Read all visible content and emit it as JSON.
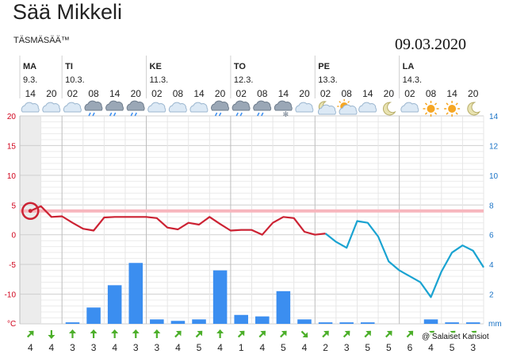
{
  "header": {
    "title": "Sää Mikkeli",
    "subtitle": "TÄSMÄSÄÄ™",
    "stamp_date": "09.03.2020",
    "credit": "@ Salaiset Kansiot"
  },
  "colors": {
    "temp_line": "#cc2233",
    "precip_line": "#1aa3d1",
    "precip_bar": "#3b8ef0",
    "left_axis": "#d0021b",
    "right_axis": "#1a73c6",
    "wind_arrow": "#4caf2a",
    "highlight_band": "#f7b6bd"
  },
  "chart_data": {
    "type": "line",
    "days": [
      {
        "name": "MA",
        "date": "9.3."
      },
      {
        "name": "TI",
        "date": "10.3."
      },
      {
        "name": "KE",
        "date": "11.3."
      },
      {
        "name": "TO",
        "date": "12.3."
      },
      {
        "name": "PE",
        "date": "13.3."
      },
      {
        "name": "LA",
        "date": "14.3."
      }
    ],
    "hours": [
      "14",
      "20",
      "02",
      "08",
      "14",
      "20",
      "02",
      "08",
      "14",
      "20",
      "02",
      "08",
      "14",
      "20",
      "02",
      "08",
      "14",
      "20",
      "02",
      "08",
      "14",
      "20"
    ],
    "day_start_index": [
      0,
      2,
      6,
      10,
      14,
      18
    ],
    "weather_icons": [
      "cloudy",
      "cloudy",
      "cloudy",
      "rain",
      "rain",
      "rain",
      "cloudy",
      "cloudy",
      "cloudy",
      "rain",
      "rain",
      "rain",
      "snow",
      "cloudy",
      "partly-cloudy-night",
      "partly-sunny",
      "cloudy",
      "moon",
      "cloudy",
      "sun",
      "sun",
      "moon"
    ],
    "left_axis": {
      "range": [
        -15,
        20
      ],
      "ticks": [
        "20",
        "15",
        "10",
        "5",
        "0",
        "-5",
        "-10"
      ],
      "unit": "°C"
    },
    "right_axis": {
      "range": [
        0,
        14
      ],
      "ticks": [
        "14",
        "12",
        "10",
        "8",
        "6",
        "4",
        "2"
      ],
      "unit": "mm"
    },
    "grid": true,
    "highlight_temperature": 4,
    "series": [
      {
        "x": [
          0,
          0.5,
          1,
          1.5,
          2,
          2.5,
          3,
          3.5,
          4,
          4.5,
          5,
          5.5,
          6,
          6.5,
          7,
          7.5,
          8,
          8.5,
          9,
          9.5,
          10,
          10.5,
          11,
          11.5,
          12,
          12.5,
          13,
          13.5,
          14,
          14.5,
          15,
          15.5,
          16,
          16.5,
          17,
          17.5,
          18,
          18.5,
          19,
          19.5,
          20,
          20.5,
          21,
          21.5
        ],
        "y": [
          4,
          4.8,
          3,
          3.1,
          2,
          1,
          0.7,
          2.9,
          3,
          3,
          3,
          3,
          2.8,
          1.2,
          0.9,
          2,
          1.7,
          3,
          1.8,
          0.7,
          0.8,
          0.8,
          0,
          2,
          3,
          2.8,
          0.5,
          0,
          0.2,
          -1.2,
          -2.2,
          2.3,
          2,
          -0.3,
          -4.5,
          -6,
          -7,
          -8,
          -10.5,
          -6.2,
          -3,
          -1.8,
          -2.7,
          -5.5
        ]
      }
    ],
    "precipitation": [
      0,
      0,
      0.1,
      1.1,
      2.6,
      4.1,
      0.3,
      0.2,
      0.3,
      3.6,
      0.6,
      0.5,
      2.2,
      0.3,
      0.1,
      0.1,
      0.1,
      0,
      0,
      0.3,
      0.1,
      0.1
    ],
    "wind_speed": [
      "4",
      "4",
      "3",
      "3",
      "4",
      "3",
      "3",
      "4",
      "5",
      "4",
      "1",
      "4",
      "5",
      "4",
      "2",
      "3",
      "5",
      "5",
      "6",
      "4",
      "5",
      "3"
    ],
    "wind_arrows": [
      "up-right",
      "down",
      "up",
      "up",
      "up",
      "up",
      "up",
      "up-right",
      "up-right",
      "up",
      "up-right",
      "up-right",
      "up-right",
      "down-right",
      "up-right",
      "up-right",
      "up-right",
      "up-right",
      "up-right",
      "up-right",
      "up-right",
      "up-right"
    ]
  }
}
